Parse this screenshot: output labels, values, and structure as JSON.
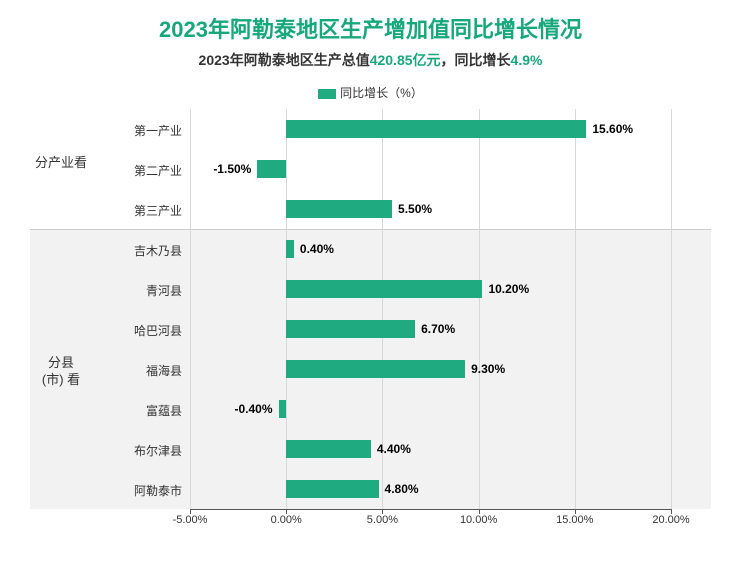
{
  "title": "2023年阿勒泰地区生产增加值同比增长情况",
  "subtitle_prefix": "2023年阿勒泰地区生产总值",
  "subtitle_value": "420.85亿元",
  "subtitle_mid": "，同比增长",
  "subtitle_growth": "4.9%",
  "legend_label": "同比增长（%）",
  "chart": {
    "type": "bar-horizontal",
    "x_min": -5.0,
    "x_max": 20.0,
    "x_ticks": [
      -5.0,
      0.0,
      5.0,
      10.0,
      15.0,
      20.0
    ],
    "x_tick_labels": [
      "-5.00%",
      "0.00%",
      "5.00%",
      "10.00%",
      "15.00%",
      "20.00%"
    ],
    "bar_color": "#1fab7f",
    "background_color": "#ffffff",
    "band_color": "#f2f2f2",
    "grid_color": "#d8d8d8",
    "axis_color": "#555555",
    "title_color": "#17a879",
    "text_color": "#333333",
    "label_fontsize": 12,
    "title_fontsize": 22,
    "groups": [
      {
        "label": "分产业看",
        "start": 0,
        "end": 3
      },
      {
        "label": "分县\n(市) 看",
        "start": 3,
        "end": 10
      }
    ],
    "rows": [
      {
        "name": "第一产业",
        "value": 15.6,
        "label": "15.60%"
      },
      {
        "name": "第二产业",
        "value": -1.5,
        "label": "-1.50%"
      },
      {
        "name": "第三产业",
        "value": 5.5,
        "label": "5.50%"
      },
      {
        "name": "吉木乃县",
        "value": 0.4,
        "label": "0.40%"
      },
      {
        "name": "青河县",
        "value": 10.2,
        "label": "10.20%"
      },
      {
        "name": "哈巴河县",
        "value": 6.7,
        "label": "6.70%"
      },
      {
        "name": "福海县",
        "value": 9.3,
        "label": "9.30%"
      },
      {
        "name": "富蕴县",
        "value": -0.4,
        "label": "-0.40%"
      },
      {
        "name": "布尔津县",
        "value": 4.4,
        "label": "4.40%"
      },
      {
        "name": "阿勒泰市",
        "value": 4.8,
        "label": "4.80%"
      }
    ]
  }
}
